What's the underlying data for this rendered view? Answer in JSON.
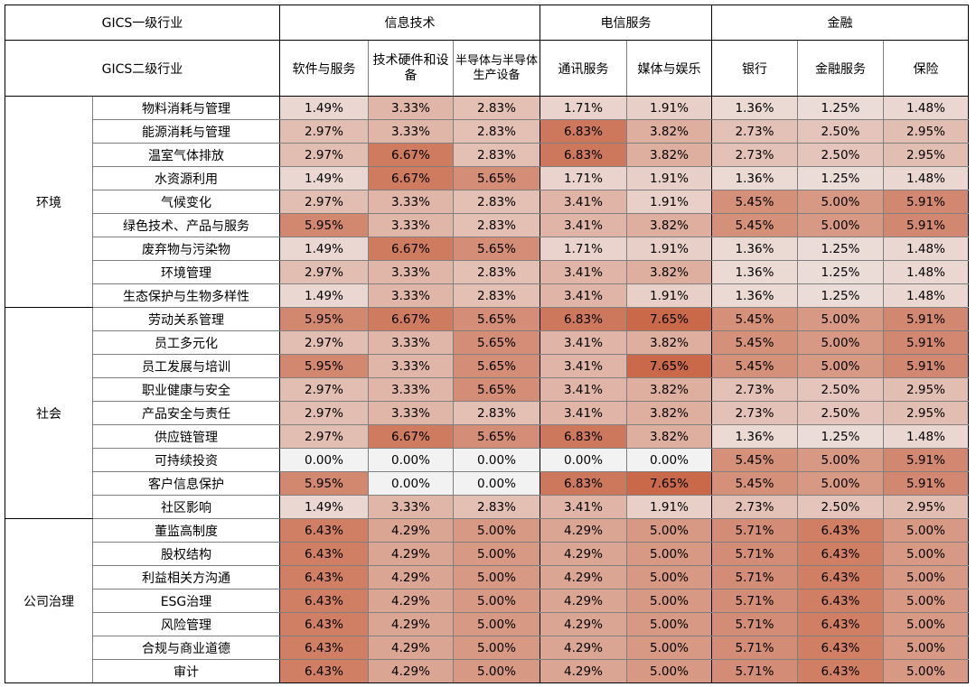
{
  "header": {
    "level1_label": "GICS一级行业",
    "level2_label": "GICS二级行业",
    "groups": [
      {
        "label": "信息技术",
        "subs": [
          "软件与服务",
          "技术硬件和设备",
          "半导体与半导体生产设备"
        ]
      },
      {
        "label": "电信服务",
        "subs": [
          "通讯服务",
          "媒体与娱乐"
        ]
      },
      {
        "label": "金融",
        "subs": [
          "银行",
          "金融服务",
          "保险"
        ]
      }
    ]
  },
  "colors": {
    "palette_low": "#f2f2f2",
    "palette_high": "#c9694a"
  },
  "sections": [
    {
      "label": "环境",
      "rows": [
        {
          "label": "物料消耗与管理",
          "values": [
            "1.49%",
            "3.33%",
            "2.83%",
            "1.71%",
            "1.91%",
            "1.36%",
            "1.25%",
            "1.48%"
          ]
        },
        {
          "label": "能源消耗与管理",
          "values": [
            "2.97%",
            "3.33%",
            "2.83%",
            "6.83%",
            "3.82%",
            "2.73%",
            "2.50%",
            "2.95%"
          ]
        },
        {
          "label": "温室气体排放",
          "values": [
            "2.97%",
            "6.67%",
            "2.83%",
            "6.83%",
            "3.82%",
            "2.73%",
            "2.50%",
            "2.95%"
          ]
        },
        {
          "label": "水资源利用",
          "values": [
            "1.49%",
            "6.67%",
            "5.65%",
            "1.71%",
            "1.91%",
            "1.36%",
            "1.25%",
            "1.48%"
          ]
        },
        {
          "label": "气候变化",
          "values": [
            "2.97%",
            "3.33%",
            "2.83%",
            "3.41%",
            "1.91%",
            "5.45%",
            "5.00%",
            "5.91%"
          ]
        },
        {
          "label": "绿色技术、产品与服务",
          "values": [
            "5.95%",
            "3.33%",
            "2.83%",
            "3.41%",
            "3.82%",
            "5.45%",
            "5.00%",
            "5.91%"
          ]
        },
        {
          "label": "废弃物与污染物",
          "values": [
            "1.49%",
            "6.67%",
            "5.65%",
            "1.71%",
            "1.91%",
            "1.36%",
            "1.25%",
            "1.48%"
          ]
        },
        {
          "label": "环境管理",
          "values": [
            "2.97%",
            "3.33%",
            "2.83%",
            "3.41%",
            "3.82%",
            "1.36%",
            "1.25%",
            "1.48%"
          ]
        },
        {
          "label": "生态保护与生物多样性",
          "values": [
            "1.49%",
            "3.33%",
            "2.83%",
            "3.41%",
            "1.91%",
            "1.36%",
            "1.25%",
            "1.48%"
          ]
        }
      ]
    },
    {
      "label": "社会",
      "rows": [
        {
          "label": "劳动关系管理",
          "values": [
            "5.95%",
            "6.67%",
            "5.65%",
            "6.83%",
            "7.65%",
            "5.45%",
            "5.00%",
            "5.91%"
          ]
        },
        {
          "label": "员工多元化",
          "values": [
            "2.97%",
            "3.33%",
            "5.65%",
            "3.41%",
            "3.82%",
            "5.45%",
            "5.00%",
            "5.91%"
          ]
        },
        {
          "label": "员工发展与培训",
          "values": [
            "5.95%",
            "3.33%",
            "5.65%",
            "3.41%",
            "7.65%",
            "5.45%",
            "5.00%",
            "5.91%"
          ]
        },
        {
          "label": "职业健康与安全",
          "values": [
            "2.97%",
            "3.33%",
            "5.65%",
            "3.41%",
            "3.82%",
            "2.73%",
            "2.50%",
            "2.95%"
          ]
        },
        {
          "label": "产品安全与责任",
          "values": [
            "2.97%",
            "3.33%",
            "2.83%",
            "3.41%",
            "3.82%",
            "2.73%",
            "2.50%",
            "2.95%"
          ]
        },
        {
          "label": "供应链管理",
          "values": [
            "2.97%",
            "6.67%",
            "5.65%",
            "6.83%",
            "3.82%",
            "1.36%",
            "1.25%",
            "1.48%"
          ]
        },
        {
          "label": "可持续投资",
          "values": [
            "0.00%",
            "0.00%",
            "0.00%",
            "0.00%",
            "0.00%",
            "5.45%",
            "5.00%",
            "5.91%"
          ]
        },
        {
          "label": "客户信息保护",
          "values": [
            "5.95%",
            "0.00%",
            "0.00%",
            "6.83%",
            "7.65%",
            "5.45%",
            "5.00%",
            "5.91%"
          ]
        },
        {
          "label": "社区影响",
          "values": [
            "1.49%",
            "3.33%",
            "2.83%",
            "3.41%",
            "1.91%",
            "2.73%",
            "2.50%",
            "2.95%"
          ]
        }
      ]
    },
    {
      "label": "公司治理",
      "rows": [
        {
          "label": "董监高制度",
          "values": [
            "6.43%",
            "4.29%",
            "5.00%",
            "4.29%",
            "5.00%",
            "5.71%",
            "6.43%",
            "5.00%"
          ]
        },
        {
          "label": "股权结构",
          "values": [
            "6.43%",
            "4.29%",
            "5.00%",
            "4.29%",
            "5.00%",
            "5.71%",
            "6.43%",
            "5.00%"
          ]
        },
        {
          "label": "利益相关方沟通",
          "values": [
            "6.43%",
            "4.29%",
            "5.00%",
            "4.29%",
            "5.00%",
            "5.71%",
            "6.43%",
            "5.00%"
          ]
        },
        {
          "label": "ESG治理",
          "values": [
            "6.43%",
            "4.29%",
            "5.00%",
            "4.29%",
            "5.00%",
            "5.71%",
            "6.43%",
            "5.00%"
          ]
        },
        {
          "label": "风险管理",
          "values": [
            "6.43%",
            "4.29%",
            "5.00%",
            "4.29%",
            "5.00%",
            "5.71%",
            "6.43%",
            "5.00%"
          ]
        },
        {
          "label": "合规与商业道德",
          "values": [
            "6.43%",
            "4.29%",
            "5.00%",
            "4.29%",
            "5.00%",
            "5.71%",
            "6.43%",
            "5.00%"
          ]
        },
        {
          "label": "审计",
          "values": [
            "6.43%",
            "4.29%",
            "5.00%",
            "4.29%",
            "5.00%",
            "5.71%",
            "6.43%",
            "5.00%"
          ]
        }
      ]
    }
  ]
}
